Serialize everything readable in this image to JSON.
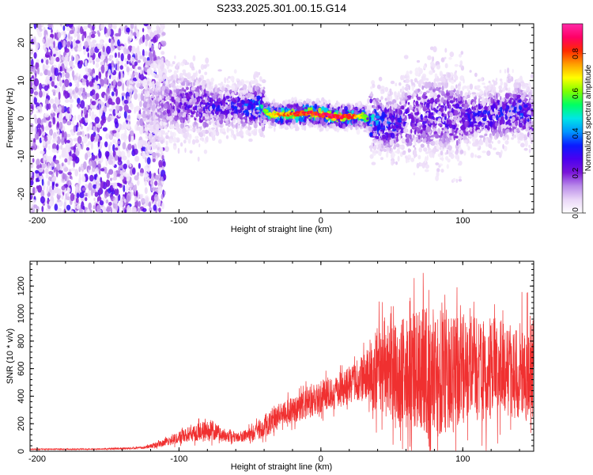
{
  "title": "S233.2025.301.00.15.G14",
  "chart_data": [
    {
      "type": "heatmap",
      "xlabel": "Height of straight line (km)",
      "ylabel": "Frequency (Hz)",
      "xlim": [
        -205,
        150
      ],
      "ylim": [
        -25,
        25
      ],
      "xticks": [
        -200,
        -100,
        0,
        100
      ],
      "yticks": [
        -20,
        -10,
        0,
        10,
        20
      ],
      "grid": false,
      "colorbar": {
        "label": "Normalized spectral amplitude",
        "range": [
          0,
          0.95
        ],
        "ticks": [
          0.0,
          0.2,
          0.4,
          0.6,
          0.8
        ],
        "colormap": [
          "#ffffff",
          "#e9d6f7",
          "#b98ae9",
          "#7a16d8",
          "#4a00f0",
          "#0a1cff",
          "#0096ff",
          "#00e6e6",
          "#00ff64",
          "#7fff00",
          "#ffff00",
          "#ff9f00",
          "#ff2a00",
          "#ff0066",
          "#ff2aa8"
        ]
      },
      "ridge": [
        {
          "x": -200,
          "freq": 0,
          "amp": 0.08
        },
        {
          "x": -120,
          "freq": 3,
          "amp": 0.15
        },
        {
          "x": -100,
          "freq": 4,
          "amp": 0.28
        },
        {
          "x": -80,
          "freq": 3,
          "amp": 0.32
        },
        {
          "x": -60,
          "freq": 3,
          "amp": 0.35
        },
        {
          "x": -45,
          "freq": 3,
          "amp": 0.45
        },
        {
          "x": -35,
          "freq": 1,
          "amp": 0.75
        },
        {
          "x": -20,
          "freq": 1,
          "amp": 0.85
        },
        {
          "x": -10,
          "freq": 1.5,
          "amp": 0.9
        },
        {
          "x": 0,
          "freq": 1,
          "amp": 0.92
        },
        {
          "x": 10,
          "freq": 0.5,
          "amp": 0.95
        },
        {
          "x": 20,
          "freq": 0.5,
          "amp": 0.9
        },
        {
          "x": 30,
          "freq": 0.5,
          "amp": 0.7
        },
        {
          "x": 40,
          "freq": -1,
          "amp": 0.45
        },
        {
          "x": 50,
          "freq": -2,
          "amp": 0.4
        },
        {
          "x": 60,
          "freq": 0,
          "amp": 0.3
        },
        {
          "x": 80,
          "freq": 1,
          "amp": 0.3
        },
        {
          "x": 100,
          "freq": 0,
          "amp": 0.32
        },
        {
          "x": 120,
          "freq": 1,
          "amp": 0.35
        },
        {
          "x": 140,
          "freq": 2,
          "amp": 0.4
        },
        {
          "x": 150,
          "freq": 0,
          "amp": 0.3
        }
      ]
    },
    {
      "type": "line",
      "xlabel": "Height of straight line (km)",
      "ylabel": "SNR (10 * v/v)",
      "xlim": [
        -205,
        150
      ],
      "ylim": [
        0,
        1380
      ],
      "xticks": [
        -200,
        -100,
        0,
        100
      ],
      "yticks": [
        0,
        200,
        400,
        600,
        800,
        1000,
        1200
      ],
      "grid": false,
      "color": "#f03030",
      "series": [
        {
          "x": [
            -205,
            -180,
            -160,
            -140,
            -125,
            -115,
            -105,
            -95,
            -85,
            -78,
            -70,
            -60,
            -50,
            -45,
            -40,
            -35,
            -30,
            -25,
            -20,
            -15,
            -10,
            -5,
            0,
            5,
            10,
            15,
            20,
            25,
            30,
            35,
            40,
            45,
            50,
            55,
            60,
            65,
            70,
            75,
            80,
            85,
            90,
            95,
            100,
            105,
            110,
            115,
            120,
            125,
            130,
            135,
            140,
            145,
            150
          ],
          "values": [
            15,
            15,
            15,
            20,
            25,
            50,
            80,
            120,
            140,
            150,
            120,
            100,
            120,
            150,
            170,
            210,
            250,
            280,
            300,
            320,
            340,
            370,
            400,
            420,
            430,
            450,
            480,
            500,
            530,
            560,
            600,
            620,
            580,
            560,
            570,
            590,
            600,
            580,
            560,
            570,
            560,
            550,
            580,
            590,
            600,
            580,
            600,
            620,
            600,
            580,
            590,
            600,
            620
          ],
          "spread": [
            5,
            5,
            5,
            8,
            10,
            25,
            40,
            60,
            80,
            100,
            60,
            40,
            60,
            80,
            90,
            100,
            110,
            110,
            110,
            120,
            130,
            140,
            140,
            140,
            140,
            150,
            160,
            170,
            200,
            300,
            380,
            420,
            440,
            460,
            480,
            500,
            520,
            540,
            560,
            540,
            520,
            500,
            480,
            460,
            450,
            440,
            430,
            420,
            410,
            400,
            420,
            430,
            440
          ]
        }
      ]
    }
  ]
}
